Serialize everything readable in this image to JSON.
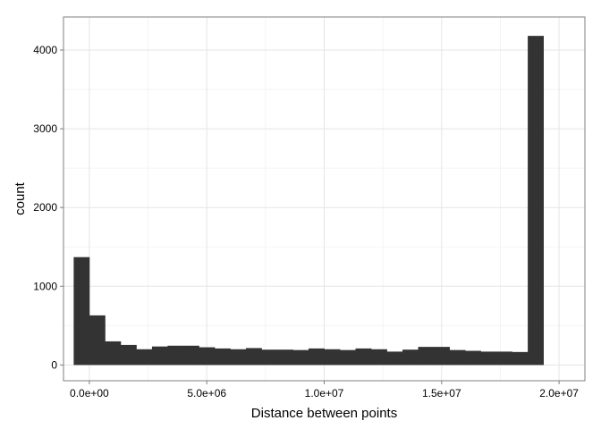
{
  "chart_data": {
    "type": "bar",
    "title": "",
    "xlabel": "Distance between points",
    "ylabel": "count",
    "xlim": [
      -1100000,
      21100000
    ],
    "ylim": [
      -200,
      4420
    ],
    "x_ticks": [
      {
        "value": 0,
        "label": "0.0e+00"
      },
      {
        "value": 5000000,
        "label": "5.0e+06"
      },
      {
        "value": 10000000,
        "label": "1.0e+07"
      },
      {
        "value": 15000000,
        "label": "1.5e+07"
      },
      {
        "value": 20000000,
        "label": "2.0e+07"
      }
    ],
    "y_ticks": [
      {
        "value": 0,
        "label": "0"
      },
      {
        "value": 1000,
        "label": "1000"
      },
      {
        "value": 2000,
        "label": "2000"
      },
      {
        "value": 3000,
        "label": "3000"
      },
      {
        "value": 4000,
        "label": "4000"
      }
    ],
    "x_minor_ticks": [
      2500000,
      7500000,
      12500000,
      17500000
    ],
    "y_minor_ticks": [
      500,
      1500,
      2500,
      3500
    ],
    "grid": true,
    "bin_width": 666667,
    "bins_start": [
      -666667,
      0,
      666667,
      1333333,
      2000000,
      2666667,
      3333333,
      4000000,
      4666667,
      5333333,
      6000000,
      6666667,
      7333333,
      8000000,
      8666667,
      9333333,
      10000000,
      10666667,
      11333333,
      12000000,
      12666667,
      13333333,
      14000000,
      14666667,
      15333333,
      16000000,
      16666667,
      17333333,
      18000000,
      18666667,
      19333333
    ],
    "values": [
      1370,
      630,
      300,
      255,
      200,
      235,
      245,
      245,
      225,
      210,
      200,
      215,
      195,
      195,
      190,
      210,
      200,
      190,
      210,
      200,
      170,
      195,
      230,
      230,
      190,
      180,
      170,
      170,
      165,
      4180,
      0
    ],
    "colors": {
      "bar": "#333333",
      "panel_border": "#7f7f7f",
      "grid_major": "#e5e5e5",
      "grid_minor": "#f2f2f2",
      "background": "#ffffff"
    }
  }
}
